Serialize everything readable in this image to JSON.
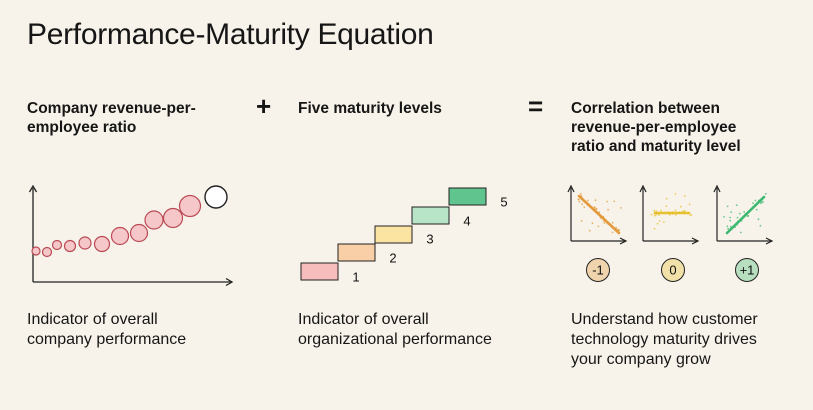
{
  "title": "Performance-Maturity Equation",
  "operators": {
    "plus": "+",
    "equals": "="
  },
  "columns": {
    "revenue": {
      "heading_line1": "Company revenue-per-",
      "heading_line2": "employee ratio",
      "desc_line1": "Indicator of overall",
      "desc_line2": "company performance"
    },
    "maturity": {
      "heading": "Five maturity levels",
      "desc_line1": "Indicator of overall",
      "desc_line2": "organizational performance",
      "levels": [
        "1",
        "2",
        "3",
        "4",
        "5"
      ]
    },
    "correlation": {
      "heading_line1": "Correlation between",
      "heading_line2": "revenue-per-employee",
      "heading_line3": "ratio and maturity level",
      "desc_line1": "Understand how customer",
      "desc_line2": "technology maturity drives",
      "desc_line3": "your company grow",
      "badges": [
        "-1",
        "0",
        "+1"
      ]
    }
  },
  "colors": {
    "background": "#f8f3ea",
    "bubble_fill": "#f6c7c9",
    "bubble_stroke": "#b94a55",
    "level_fills": [
      "#f7bcbc",
      "#f8cfa6",
      "#fbe3a2",
      "#b8e4c8",
      "#5fc48e"
    ],
    "negative": "#e39a3c",
    "neutral": "#e6c02f",
    "positive": "#3db871"
  }
}
